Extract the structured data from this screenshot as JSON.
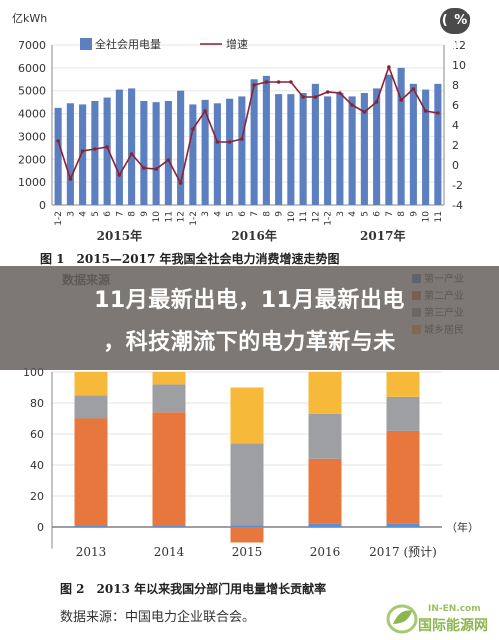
{
  "share_badge": "( % )",
  "overlay": {
    "line1": "11月最新出电，11月最新出电",
    "line2": "，科技潮流下的电力革新与未"
  },
  "chart1": {
    "left_unit": "亿kWh",
    "right_unit": "(%)",
    "legend": [
      {
        "label": "全社会用电量",
        "color": "#5b7fbf"
      },
      {
        "label": "增速",
        "color": "#8b2234"
      }
    ],
    "caption": "图 1　2015—2017 年我国全社会电力消费增速走势图",
    "years": [
      "2015年",
      "2016年",
      "2017年"
    ]
  },
  "chart2": {
    "partial_legend_text": "数据来源",
    "legend": [
      {
        "label": "第一产业",
        "color": "#5b8fd0"
      },
      {
        "label": "第二产业",
        "color": "#e8773e"
      },
      {
        "label": "第三产业",
        "color": "#9e9fa3"
      },
      {
        "label": "城乡居民",
        "color": "#f6b93a"
      }
    ],
    "unit_label": "（年）",
    "caption": "图 2　2013 年以来我国分部门用电量增长贡献率",
    "source": "数据来源：中国电力企业联合会。"
  },
  "watermark": {
    "en": "IN-EN.com",
    "cn": "国际能源网"
  },
  "chart_data": [
    {
      "type": "bar",
      "title": "2015—2017 年我国全社会电力消费增速走势图",
      "xlabel": "",
      "ylabel": "亿kWh",
      "y2label": "(%)",
      "ylim": [
        0,
        7000
      ],
      "y2lim": [
        -4,
        12
      ],
      "yticks": [
        0,
        1000,
        2000,
        3000,
        4000,
        5000,
        6000,
        7000
      ],
      "y2ticks": [
        -4,
        -2,
        0,
        2,
        4,
        6,
        8,
        10,
        12
      ],
      "categories": [
        "1-2",
        "3",
        "4",
        "5",
        "6",
        "7",
        "8",
        "9",
        "10",
        "11",
        "12",
        "1-2",
        "3",
        "4",
        "5",
        "6",
        "7",
        "8",
        "9",
        "10",
        "11",
        "12",
        "1-2",
        "3",
        "4",
        "5",
        "6",
        "7",
        "8",
        "9",
        "10",
        "11"
      ],
      "series": [
        {
          "name": "全社会用电量",
          "kind": "bar",
          "axis": "left",
          "color": "#5b7fbf",
          "values": [
            4250,
            4450,
            4400,
            4550,
            4700,
            5050,
            5100,
            4550,
            4500,
            4550,
            5000,
            4400,
            4600,
            4450,
            4650,
            4750,
            5500,
            5650,
            4850,
            4850,
            4900,
            5300,
            4750,
            4900,
            4750,
            4900,
            5100,
            5700,
            6000,
            5300,
            5050,
            5300
          ]
        },
        {
          "name": "增速",
          "kind": "line",
          "axis": "right",
          "color": "#8b2234",
          "values": [
            2.4,
            -1.4,
            1.4,
            1.6,
            1.8,
            -1.0,
            1.1,
            -0.3,
            -0.4,
            0.5,
            -1.8,
            3.6,
            5.4,
            2.3,
            2.3,
            2.6,
            8.0,
            8.3,
            8.3,
            8.3,
            6.8,
            6.8,
            7.3,
            7.2,
            6.0,
            5.3,
            6.3,
            9.8,
            6.5,
            7.6,
            5.4,
            5.2
          ]
        }
      ]
    },
    {
      "type": "bar",
      "title": "2013 年以来我国分部门用电量增长贡献率",
      "xlabel": "（年）",
      "ylabel": "",
      "ylim": [
        -10,
        100
      ],
      "yticks": [
        0,
        20,
        40,
        60,
        80,
        100
      ],
      "stacked": true,
      "categories": [
        "2013",
        "2014",
        "2015",
        "2016",
        "2017 (预计)"
      ],
      "series": [
        {
          "name": "第一产业",
          "values": [
            1,
            1,
            1,
            2,
            2
          ]
        },
        {
          "name": "第二产业",
          "values": [
            69,
            73,
            -10,
            42,
            60
          ]
        },
        {
          "name": "第三产业",
          "values": [
            15,
            18,
            53,
            29,
            22
          ]
        },
        {
          "name": "城乡居民",
          "values": [
            15,
            8,
            36,
            27,
            16
          ]
        }
      ]
    }
  ]
}
